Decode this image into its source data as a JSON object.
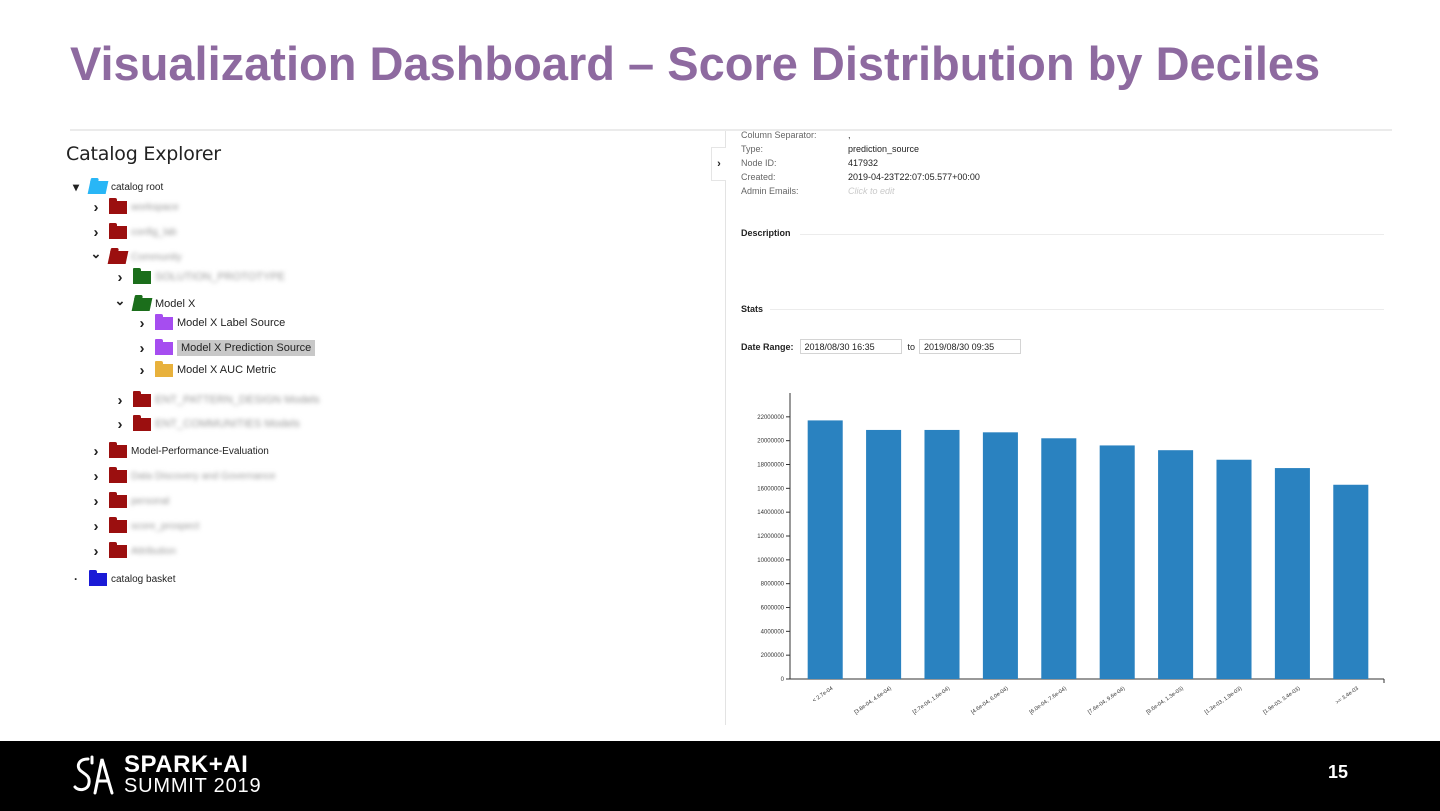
{
  "slide": {
    "title": "Visualization Dashboard – Score Distribution by Deciles",
    "page_number": "15"
  },
  "footer": {
    "logo_line1": "SPARK+AI",
    "logo_line2": "SUMMIT 2019"
  },
  "explorer": {
    "title": "Catalog Explorer",
    "nodes": [
      {
        "label": "catalog root",
        "level": 0,
        "chevron": "down-small",
        "folder_color": "#29b6f6",
        "open": true,
        "blurred": false
      },
      {
        "label": "",
        "level": 1,
        "chevron": "right",
        "folder_color": "#9b0f0f",
        "open": false,
        "blurred": true,
        "blur_text": "workspace"
      },
      {
        "label": "",
        "level": 1,
        "chevron": "right",
        "folder_color": "#9b0f0f",
        "open": false,
        "blurred": true,
        "blur_text": "config_lab"
      },
      {
        "label": "",
        "level": 1,
        "chevron": "down",
        "folder_color": "#9b0f0f",
        "open": true,
        "blurred": true,
        "blur_text": "Community"
      },
      {
        "label": "",
        "level": 2,
        "chevron": "right",
        "folder_color": "#1b6e1b",
        "open": false,
        "blurred": true,
        "blur_text": "SOLUTION_PROTOTYPE"
      },
      {
        "label": "Model X",
        "level": 2,
        "chevron": "down",
        "folder_color": "#1b6e1b",
        "open": true,
        "blurred": false
      },
      {
        "label": "Model X Label Source",
        "level": 3,
        "chevron": "right",
        "folder_color": "#a64df0",
        "open": false,
        "blurred": false
      },
      {
        "label": "Model X Prediction Source",
        "level": 3,
        "chevron": "right",
        "folder_color": "#a64df0",
        "open": false,
        "blurred": false,
        "selected": true
      },
      {
        "label": "Model X AUC Metric",
        "level": 3,
        "chevron": "right",
        "folder_color": "#e8b13c",
        "open": false,
        "blurred": false
      },
      {
        "label": "",
        "level": 2,
        "chevron": "right",
        "folder_color": "#9b0f0f",
        "open": false,
        "blurred": true,
        "blur_text": "ENT_PATTERN_DESIGN Models"
      },
      {
        "label": "",
        "level": 2,
        "chevron": "right",
        "folder_color": "#9b0f0f",
        "open": false,
        "blurred": true,
        "blur_text": "ENT_COMMUNITIES Models"
      },
      {
        "label": "Model-Performance-Evaluation",
        "level": 1,
        "chevron": "right",
        "folder_color": "#9b0f0f",
        "open": false,
        "blurred": false
      },
      {
        "label": "",
        "level": 1,
        "chevron": "right",
        "folder_color": "#9b0f0f",
        "open": false,
        "blurred": true,
        "blur_text": "Data Discovery and Governance"
      },
      {
        "label": "",
        "level": 1,
        "chevron": "right",
        "folder_color": "#9b0f0f",
        "open": false,
        "blurred": true,
        "blur_text": "personal"
      },
      {
        "label": "",
        "level": 1,
        "chevron": "right",
        "folder_color": "#9b0f0f",
        "open": false,
        "blurred": true,
        "blur_text": "score_prospect"
      },
      {
        "label": "",
        "level": 1,
        "chevron": "right",
        "folder_color": "#9b0f0f",
        "open": false,
        "blurred": true,
        "blur_text": "Attribution"
      },
      {
        "label": "catalog basket",
        "level": 0,
        "chevron": "dot",
        "folder_color": "#1a1ad6",
        "open": false,
        "blurred": false
      }
    ]
  },
  "details": {
    "fields": [
      {
        "key": "Column Separator:",
        "value": ","
      },
      {
        "key": "Type:",
        "value": "prediction_source"
      },
      {
        "key": "Node ID:",
        "value": "417932"
      },
      {
        "key": "Created:",
        "value": "2019-04-23T22:07:05.577+00:00"
      },
      {
        "key": "Admin Emails:",
        "value": "Click to edit",
        "placeholder": true
      }
    ],
    "description_heading": "Description",
    "stats_heading": "Stats",
    "date_range_label": "Date Range:",
    "date_from": "2018/08/30 16:35",
    "date_to_label": "to",
    "date_to": "2019/08/30 09:35"
  },
  "chart_data": {
    "type": "bar",
    "color": "#2a82c0",
    "categories": [
      "< 2.7e-04",
      "[3.8e-04, 4.6e-04)",
      "[2.7e-04, 1.6e-04)",
      "[4.6e-04, 6.0e-04)",
      "[6.0e-04, 7.6e-04)",
      "[7.6e-04, 9.6e-04)",
      "[9.6e-04, 1.3e-03)",
      "[1.3e-03, 1.9e-03)",
      "[1.9e-03, 3.4e-03)",
      ">= 3.4e-03"
    ],
    "values": [
      21700000,
      20900000,
      20900000,
      20700000,
      20200000,
      19600000,
      19200000,
      18400000,
      17700000,
      16300000
    ],
    "ylim": [
      0,
      24000000
    ],
    "yticks": [
      0,
      2000000,
      4000000,
      6000000,
      8000000,
      10000000,
      12000000,
      14000000,
      16000000,
      18000000,
      20000000,
      22000000
    ],
    "title": "",
    "xlabel": "",
    "ylabel": "",
    "grid": false,
    "legend": "none"
  }
}
